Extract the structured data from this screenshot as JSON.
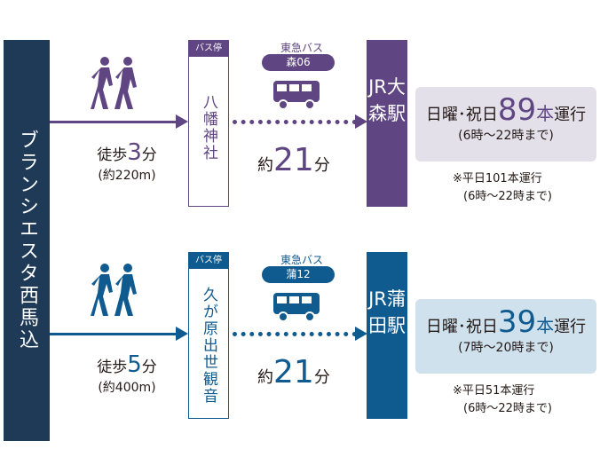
{
  "origin": "ブランシエスタ西馬込",
  "routes": [
    {
      "walk_prefix": "徒歩",
      "walk_min": "3",
      "walk_unit": "分",
      "walk_dist": "(約220m)",
      "stop_header": "バス停",
      "stop_name": "八幡神社",
      "bus_company": "東急バス",
      "bus_route": "森06",
      "dur_prefix": "約",
      "dur_min": "21",
      "dur_unit": "分",
      "station": "JR大森駅",
      "holiday_prefix": "日曜･祝日",
      "holiday_count": "89",
      "holiday_suffix_1": "本",
      "holiday_suffix_2": "運行",
      "holiday_hours": "(6時～22時まで)",
      "weekday": "※平日101本運行",
      "weekday_hours": "(6時～22時まで)",
      "color": "#5f4582",
      "bg": "#e4e0ea"
    },
    {
      "walk_prefix": "徒歩",
      "walk_min": "5",
      "walk_unit": "分",
      "walk_dist": "(約400m)",
      "stop_header": "バス停",
      "stop_name": "久が原出世観音",
      "bus_company": "東急バス",
      "bus_route": "蒲12",
      "dur_prefix": "約",
      "dur_min": "21",
      "dur_unit": "分",
      "station": "JR蒲田駅",
      "holiday_prefix": "日曜･祝日",
      "holiday_count": "39",
      "holiday_suffix_1": "本",
      "holiday_suffix_2": "運行",
      "holiday_hours": "(7時～20時まで)",
      "weekday": "※平日51本運行",
      "weekday_hours": "(6時～22時まで)",
      "color": "#0f5a8f",
      "bg": "#cfe1ed"
    }
  ]
}
